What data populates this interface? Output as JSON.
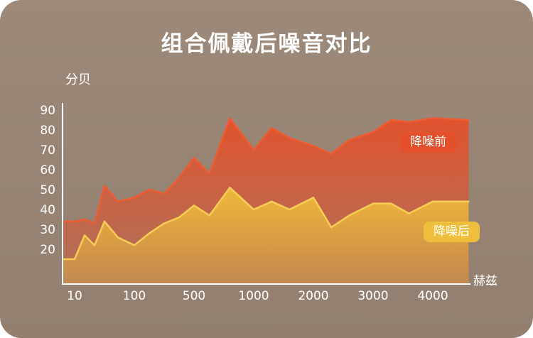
{
  "colors": {
    "page_bg": "#FFFFFF",
    "bg": "#9C8979",
    "bg_bottom": "#927F6F",
    "text": "#FFFFFF",
    "axis": "#FFFFFF",
    "series_before": "#E4502B",
    "series_after": "#EFBE3C"
  },
  "chart_data": {
    "type": "area",
    "title": "组合佩戴后噪音对比",
    "ylabel": "分贝",
    "xlabel": "赫兹",
    "grid": false,
    "legend_position": "on-chart-badges",
    "ylim": [
      0,
      90
    ],
    "y_ticks": [
      90,
      80,
      70,
      60,
      50,
      40,
      30,
      20
    ],
    "x_ticks": [
      {
        "label": "10",
        "value": 10
      },
      {
        "label": "100",
        "value": 100
      },
      {
        "label": "500",
        "value": 500
      },
      {
        "label": "1000",
        "value": 1000
      },
      {
        "label": "2000",
        "value": 2000
      },
      {
        "label": "3000",
        "value": 3000
      },
      {
        "label": "4000",
        "value": 4000
      }
    ],
    "x": [
      10,
      25,
      40,
      55,
      75,
      100,
      200,
      300,
      400,
      500,
      630,
      800,
      1000,
      1300,
      1600,
      2000,
      2300,
      2600,
      3000,
      3300,
      3600,
      4000,
      4600
    ],
    "series": [
      {
        "name": "降噪前",
        "color": "#E4502B",
        "line_color": "#EF5C31",
        "values": [
          34,
          35,
          33,
          52,
          44,
          46,
          50,
          48,
          56,
          66,
          58,
          86,
          70,
          81,
          76,
          72,
          68,
          75,
          79,
          85,
          84,
          86,
          85
        ]
      },
      {
        "name": "降噪后",
        "color": "#EFBE3C",
        "line_color": "#F6CE55",
        "values": [
          15,
          27,
          22,
          34,
          26,
          22,
          28,
          33,
          36,
          42,
          37,
          51,
          40,
          44,
          40,
          46,
          31,
          37,
          43,
          43,
          38,
          44,
          44
        ]
      }
    ]
  }
}
